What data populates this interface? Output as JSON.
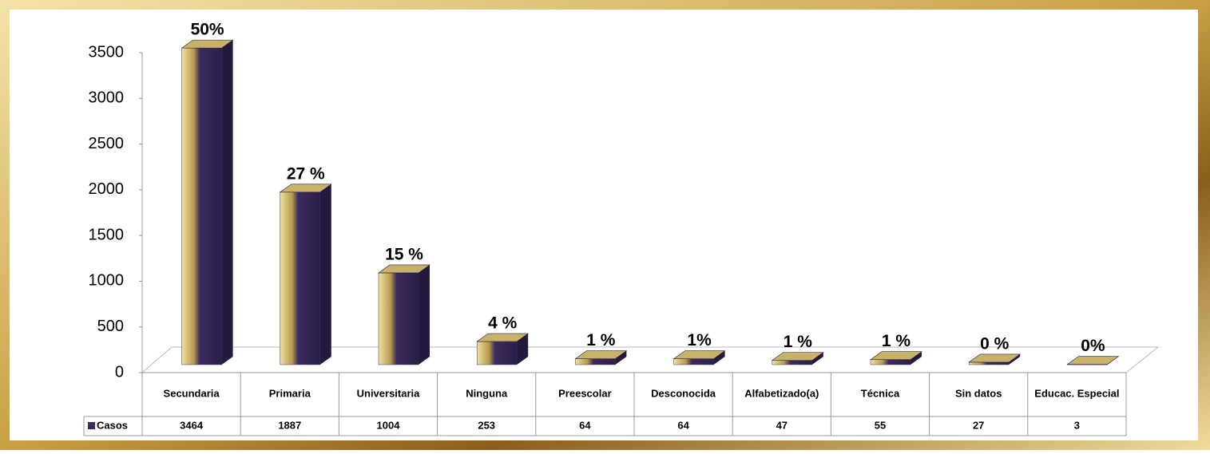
{
  "chart_data": {
    "type": "bar",
    "categories": [
      "Secundaria",
      "Primaria",
      "Universitaria",
      "Ninguna",
      "Preescolar",
      "Desconocida",
      "Alfabetizado(a)",
      "Técnica",
      "Sin datos",
      "Educac. Especial"
    ],
    "series": [
      {
        "name": "Casos",
        "color": "#3b2b5e",
        "values": [
          3464,
          1887,
          1004,
          253,
          64,
          64,
          47,
          55,
          27,
          3
        ]
      }
    ],
    "annotations": [
      "50%",
      "27 %",
      "15 %",
      "4 %",
      "1 %",
      "1%",
      "1 %",
      "1 %",
      "0 %",
      "0%"
    ],
    "ylim": [
      0,
      3500
    ],
    "yticks": [
      0,
      500,
      1000,
      1500,
      2000,
      2500,
      3000,
      3500
    ],
    "grid": false
  }
}
